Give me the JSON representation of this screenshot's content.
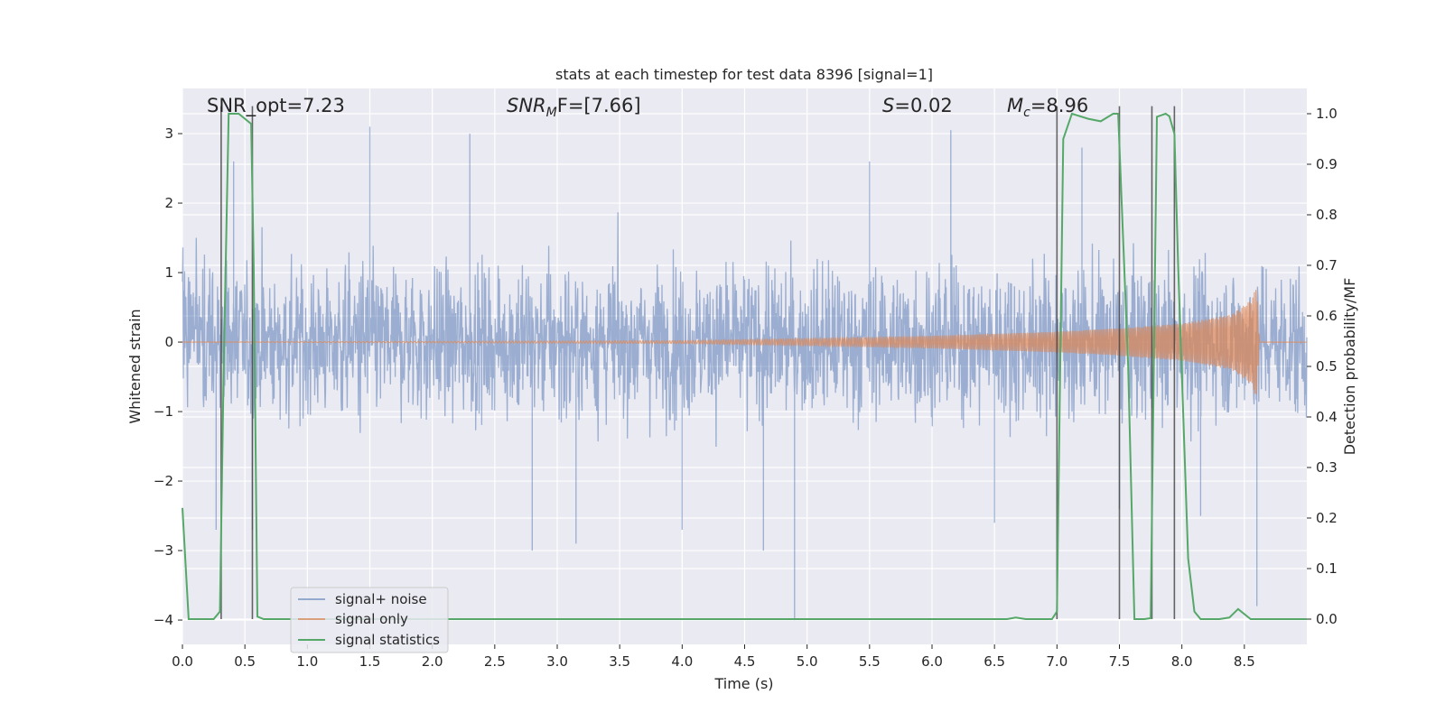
{
  "chart_data": {
    "type": "line",
    "title": "stats at each timestep for test data 8396 [signal=1]",
    "xlabel": "Time (s)",
    "ylabel": "Whitened strain",
    "ylabel_right": "Detection probability/MF",
    "xlim": [
      0.0,
      9.0
    ],
    "ylim": [
      -4.35,
      3.65
    ],
    "ylim_right": [
      -0.05,
      1.05
    ],
    "x_ticks": [
      "0.0",
      "0.5",
      "1.0",
      "1.5",
      "2.0",
      "2.5",
      "3.0",
      "3.5",
      "4.0",
      "4.5",
      "5.0",
      "5.5",
      "6.0",
      "6.5",
      "7.0",
      "7.5",
      "8.0",
      "8.5"
    ],
    "y_ticks": [
      "3",
      "2",
      "1",
      "0",
      "−1",
      "−2",
      "−3",
      "−4"
    ],
    "y_right_ticks": [
      "1.0",
      "0.9",
      "0.8",
      "0.7",
      "0.6",
      "0.5",
      "0.4",
      "0.3",
      "0.2",
      "0.1",
      "0.0"
    ],
    "grid": true,
    "legend_position": "bottom-left",
    "colors": {
      "background": "#eaeaf2",
      "grid": "#ffffff",
      "noise": "#4c72b0",
      "signal": "#dd8452",
      "stats": "#55a868",
      "vlines": "#404040"
    },
    "annotations": {
      "snr_opt": "SNR_opt=7.23",
      "snr_mf_prefix": "SNR",
      "snr_mf_sub": "M",
      "snr_mf_suffix": "F=[7.66]",
      "s_var": "S",
      "s_value": "=0.02",
      "mc_var": "M",
      "mc_sub": "c",
      "mc_value": "=8.96"
    },
    "series": [
      {
        "name": "signal+ noise",
        "axis": "left",
        "description_values": "white noise band",
        "envelope_upper": [
          [
            0.0,
            1.5
          ],
          [
            1.0,
            1.6
          ],
          [
            2.0,
            1.6
          ],
          [
            3.0,
            1.6
          ],
          [
            4.0,
            1.6
          ],
          [
            5.0,
            1.6
          ],
          [
            6.0,
            1.6
          ],
          [
            7.0,
            1.6
          ],
          [
            8.0,
            1.6
          ],
          [
            9.0,
            1.5
          ]
        ],
        "envelope_lower": [
          [
            0.0,
            -1.5
          ],
          [
            1.0,
            -1.6
          ],
          [
            2.0,
            -1.6
          ],
          [
            3.0,
            -1.6
          ],
          [
            4.0,
            -1.6
          ],
          [
            5.0,
            -1.6
          ],
          [
            6.0,
            -1.6
          ],
          [
            7.0,
            -1.6
          ],
          [
            8.0,
            -1.6
          ],
          [
            9.0,
            -1.5
          ]
        ],
        "peaks": [
          [
            0.27,
            -2.7
          ],
          [
            0.41,
            2.6
          ],
          [
            0.56,
            -2.7
          ],
          [
            1.5,
            3.1
          ],
          [
            2.3,
            3.0
          ],
          [
            2.8,
            -3.0
          ],
          [
            3.15,
            -2.9
          ],
          [
            4.0,
            -2.7
          ],
          [
            4.65,
            -3.0
          ],
          [
            4.9,
            -4.0
          ],
          [
            5.5,
            2.6
          ],
          [
            6.15,
            3.05
          ],
          [
            6.5,
            -2.6
          ],
          [
            7.2,
            2.8
          ],
          [
            7.5,
            -2.4
          ],
          [
            8.15,
            -2.5
          ],
          [
            8.6,
            -3.8
          ]
        ]
      },
      {
        "name": "signal only",
        "axis": "left",
        "chirp_amplitude": [
          [
            0.0,
            0.0
          ],
          [
            4.0,
            0.02
          ],
          [
            5.0,
            0.05
          ],
          [
            6.0,
            0.09
          ],
          [
            7.0,
            0.15
          ],
          [
            7.5,
            0.2
          ],
          [
            8.0,
            0.27
          ],
          [
            8.4,
            0.4
          ],
          [
            8.55,
            0.6
          ],
          [
            8.6,
            0.8
          ],
          [
            8.62,
            0.0
          ],
          [
            9.0,
            0.0
          ]
        ]
      },
      {
        "name": "signal statistics",
        "axis": "right",
        "x": [
          0.0,
          0.05,
          0.1,
          0.2,
          0.25,
          0.3,
          0.33,
          0.37,
          0.4,
          0.45,
          0.5,
          0.55,
          0.57,
          0.6,
          0.65,
          0.7,
          1.0,
          2.0,
          3.0,
          4.0,
          5.0,
          6.0,
          6.6,
          6.67,
          6.75,
          6.96,
          7.0,
          7.05,
          7.12,
          7.25,
          7.35,
          7.45,
          7.49,
          7.57,
          7.62,
          7.7,
          7.75,
          7.8,
          7.87,
          7.9,
          7.94,
          7.97,
          8.05,
          8.1,
          8.15,
          8.3,
          8.38,
          8.45,
          8.55,
          8.7,
          9.0
        ],
        "values": [
          0.22,
          0.0,
          0.0,
          0.0,
          0.0,
          0.015,
          0.5,
          1.0,
          1.0,
          1.0,
          0.99,
          0.98,
          0.7,
          0.005,
          0.0,
          0.0,
          0.0,
          0.0,
          0.0,
          0.0,
          0.0,
          0.0,
          0.0,
          0.003,
          0.0,
          0.0,
          0.015,
          0.95,
          1.0,
          0.99,
          0.985,
          1.0,
          1.0,
          0.5,
          0.0,
          0.0,
          0.002,
          0.994,
          1.0,
          0.995,
          0.96,
          0.7,
          0.12,
          0.015,
          0.0,
          0.0,
          0.003,
          0.02,
          0.0,
          0.0,
          0.0
        ]
      }
    ],
    "vertical_lines_x": [
      0.31,
      0.56,
      7.0,
      7.5,
      7.76,
      7.94
    ]
  },
  "legend": {
    "noise_label": "signal+ noise",
    "signal_label": "signal only",
    "stats_label": "signal statistics"
  }
}
